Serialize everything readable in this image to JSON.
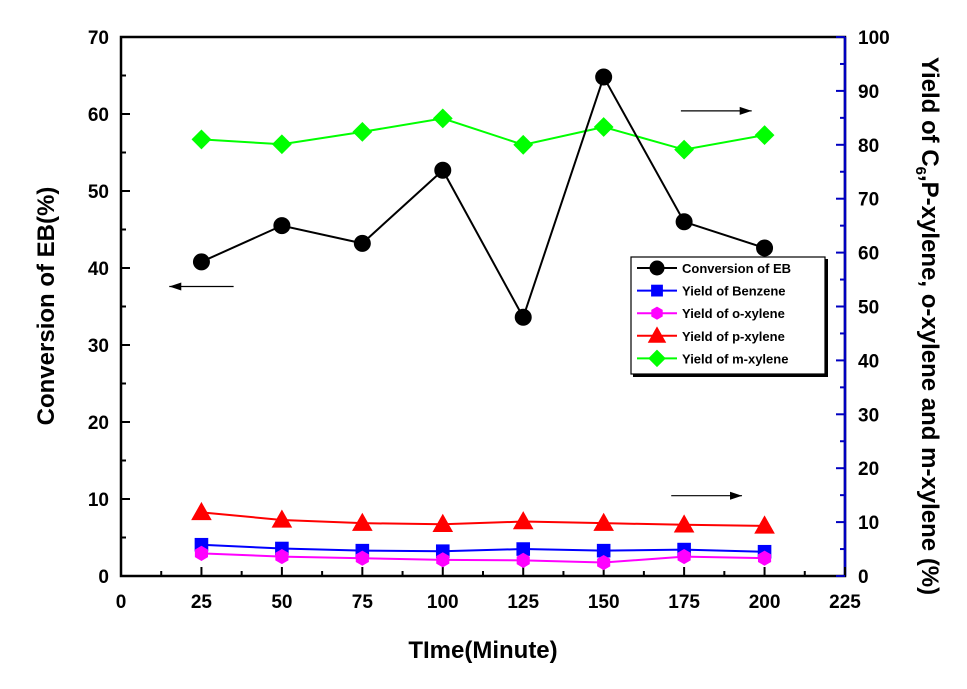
{
  "chart_data": {
    "type": "line",
    "title": "",
    "xlabel": "TIme(Minute)",
    "ylabel_left": "Conversion of EB(%)",
    "ylabel_right": {
      "prefix": "Yield of C",
      "subscript": "6",
      "suffix": ",P-xylene, o-xylene and m-xylene (%)"
    },
    "xlim": [
      0,
      225
    ],
    "ylim_left": [
      0,
      70
    ],
    "ylim_right": [
      0,
      100
    ],
    "x_ticks": [
      "0",
      "25",
      "50",
      "75",
      "100",
      "125",
      "150",
      "175",
      "200",
      "225"
    ],
    "y_left_ticks": [
      "0",
      "10",
      "20",
      "30",
      "40",
      "50",
      "60",
      "70"
    ],
    "y_right_ticks": [
      "0",
      "10",
      "20",
      "30",
      "40",
      "50",
      "60",
      "70",
      "80",
      "90",
      "100"
    ],
    "grid": false,
    "legend_position": "right-middle",
    "x": [
      25,
      50,
      75,
      100,
      125,
      150,
      175,
      200
    ],
    "series": [
      {
        "name": "Conversion of EB",
        "axis": "left",
        "color": "#000000",
        "marker": "circle",
        "values": [
          40.8,
          45.5,
          43.2,
          52.7,
          33.6,
          64.8,
          46.0,
          42.6
        ]
      },
      {
        "name": "Yield of Benzene",
        "axis": "right",
        "color": "#0000ff",
        "marker": "square",
        "values": [
          5.8,
          5.1,
          4.7,
          4.6,
          5.0,
          4.7,
          4.9,
          4.5
        ]
      },
      {
        "name": "Yield of o-xylene",
        "axis": "right",
        "color": "#ff00ff",
        "marker": "hexagon",
        "values": [
          4.2,
          3.6,
          3.3,
          3.0,
          2.9,
          2.5,
          3.6,
          3.3
        ]
      },
      {
        "name": "Yield of p-xylene",
        "axis": "right",
        "color": "#ff0000",
        "marker": "triangle",
        "values": [
          11.8,
          10.4,
          9.8,
          9.6,
          10.1,
          9.8,
          9.5,
          9.3
        ]
      },
      {
        "name": "Yield of m-xylene",
        "axis": "right",
        "color": "#00ff00",
        "marker": "diamond",
        "values": [
          81.0,
          80.1,
          82.4,
          84.9,
          80.0,
          83.3,
          79.1,
          81.8
        ]
      }
    ],
    "annotations": [
      {
        "type": "arrow",
        "direction": "left",
        "axis": "left",
        "x1": 35,
        "x2": 15,
        "y": 37.6
      },
      {
        "type": "arrow",
        "direction": "right",
        "axis": "right",
        "x1": 174,
        "x2": 196,
        "y": 86.3
      },
      {
        "type": "arrow",
        "direction": "right",
        "axis": "right",
        "x1": 171,
        "x2": 193,
        "y": 14.9
      }
    ]
  }
}
